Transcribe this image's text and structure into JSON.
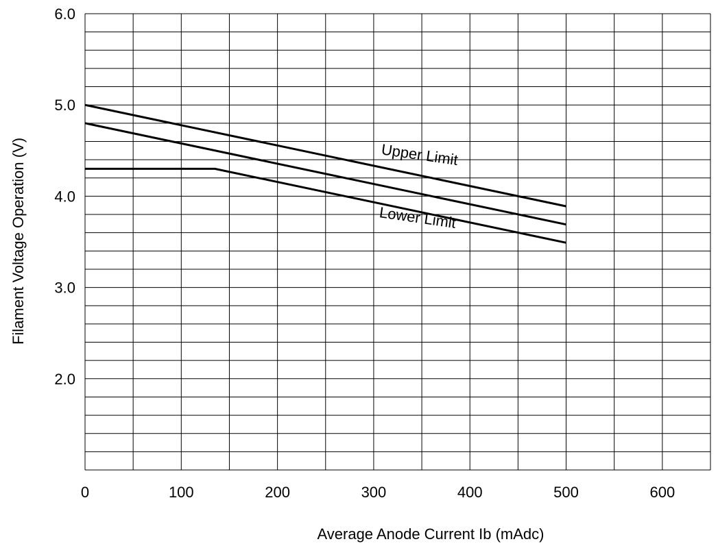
{
  "chart_data": {
    "type": "line",
    "title": "",
    "xlabel": "Average Anode Current Ib (mAdc)",
    "ylabel": "Filament Voltage Operation (V)",
    "xlim": [
      0,
      650
    ],
    "ylim": [
      1.0,
      6.0
    ],
    "x_ticks": [
      "0",
      "100",
      "200",
      "300",
      "400",
      "500",
      "600"
    ],
    "x_tick_values": [
      0,
      100,
      200,
      300,
      400,
      500,
      600
    ],
    "y_ticks": [
      "2.0",
      "3.0",
      "4.0",
      "5.0",
      "6.0"
    ],
    "y_tick_values": [
      2.0,
      3.0,
      4.0,
      5.0,
      6.0
    ],
    "x_minor_step": 50,
    "y_minor_step": 0.2,
    "grid": true,
    "legend": "none",
    "series": [
      {
        "name": "Upper Limit",
        "x": [
          0,
          500
        ],
        "y": [
          5.0,
          3.89
        ]
      },
      {
        "x": [
          0,
          500
        ],
        "y": [
          4.8,
          3.69
        ]
      },
      {
        "name": "Lower Limit",
        "x": [
          0,
          135,
          500
        ],
        "y": [
          4.3,
          4.3,
          3.49
        ]
      }
    ],
    "annotations": [
      {
        "text": "Upper Limit",
        "x": 347,
        "y": 4.4,
        "angle": 8.2
      },
      {
        "text": "Lower Limit",
        "x": 345,
        "y": 3.71,
        "angle": 8.2
      }
    ]
  }
}
